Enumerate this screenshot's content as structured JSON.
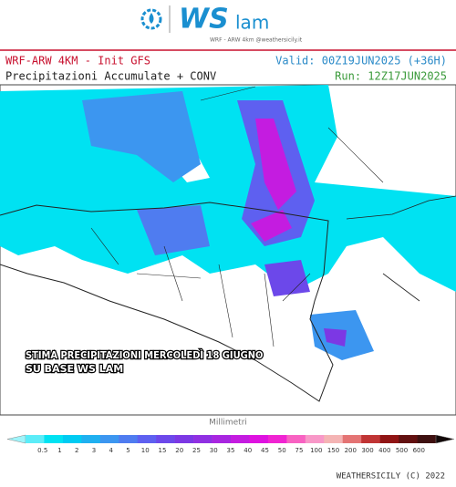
{
  "header": {
    "logo_main": "WS",
    "logo_sub": "lam",
    "tagline": "WRF - ARW 4km @weathersicily.it"
  },
  "panel": {
    "model": "WRF-ARW 4KM - Init GFS",
    "valid": "Valid: 00Z19JUN2025 (+36H)",
    "field": "Precipitazioni Accumulate + CONV",
    "run": "Run: 12Z17JUN2025"
  },
  "overlay": {
    "line1": "STIMA PRECIPITAZIONI MERCOLEDÌ 18 GIUGNO",
    "line2": "SU BASE WS LAM"
  },
  "legend": {
    "unit": "Millimetri",
    "ticks": [
      0.5,
      1,
      2,
      3,
      4,
      5,
      10,
      15,
      20,
      25,
      30,
      35,
      40,
      45,
      50,
      75,
      100,
      150,
      200,
      300,
      400,
      500,
      600
    ],
    "colors": [
      "#9ff4fa",
      "#5cecf8",
      "#00e2f2",
      "#00cbf2",
      "#1fb0f0",
      "#3c96f0",
      "#4f7cf0",
      "#5e60f0",
      "#6c48ea",
      "#7c38e4",
      "#9030e2",
      "#a826e0",
      "#c41ce0",
      "#de12e0",
      "#f024d2",
      "#f862c2",
      "#f898c8",
      "#f4b4b4",
      "#e47474",
      "#c03434",
      "#901414",
      "#621010",
      "#3e1010",
      "#120808"
    ]
  },
  "footer": {
    "copyright": "WEATHERSICILY (C) 2022"
  }
}
